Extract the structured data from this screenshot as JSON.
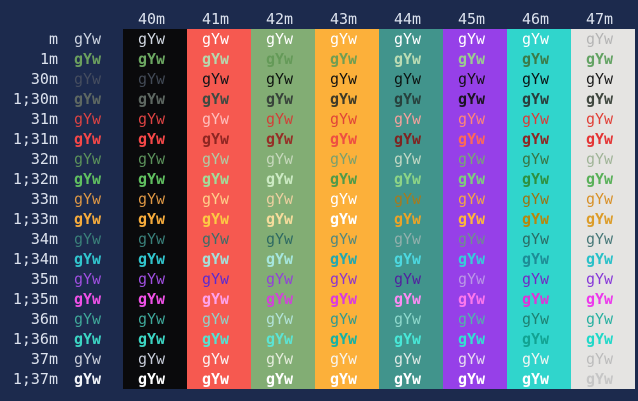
{
  "terminal": {
    "cell_text": "gYw",
    "background": "#1c2a4d",
    "header_color": "#dce2ee",
    "label_color": "#dce2ee",
    "columns": [
      {
        "id": "default",
        "header": "",
        "bg": null
      },
      {
        "id": "40m",
        "header": "40m",
        "bg": "#0a0a0c"
      },
      {
        "id": "41m",
        "header": "41m",
        "bg": "#f65950"
      },
      {
        "id": "42m",
        "header": "42m",
        "bg": "#82ad74"
      },
      {
        "id": "43m",
        "header": "43m",
        "bg": "#fcb03a"
      },
      {
        "id": "44m",
        "header": "44m",
        "bg": "#41948c"
      },
      {
        "id": "45m",
        "header": "45m",
        "bg": "#9640e8"
      },
      {
        "id": "46m",
        "header": "46m",
        "bg": "#30d5cc"
      },
      {
        "id": "47m",
        "header": "47m",
        "bg": "#e5e4e2"
      }
    ],
    "rows": [
      {
        "label": "m",
        "bold": false,
        "cells": [
          "#ccd3e0",
          "#d2d8e2",
          "#ffffff",
          "#ffffff",
          "#ffffff",
          "#ffffff",
          "#ffffff",
          "#ffffff",
          "#b4b4b4"
        ]
      },
      {
        "label": "1m",
        "bold": true,
        "cells": [
          "#6ca05e",
          "#6ca862",
          "#b6d8ae",
          "#649a58",
          "#6f9e53",
          "#bcdcb4",
          "#9ccc90",
          "#3c7a48",
          "#62a262"
        ]
      },
      {
        "label": "30m",
        "bold": false,
        "cells": [
          "#454d5f",
          "#424a56",
          "#101418",
          "#0e1410",
          "#131310",
          "#0c1412",
          "#141014",
          "#0c1414",
          "#1c1c1c"
        ]
      },
      {
        "label": "1;30m",
        "bold": true,
        "cells": [
          "#5e6862",
          "#5e6862",
          "#3e4a42",
          "#37423a",
          "#3c3a28",
          "#27403c",
          "#1c1420",
          "#2c3c3a",
          "#3e463e"
        ]
      },
      {
        "label": "31m",
        "bold": false,
        "cells": [
          "#dc4343",
          "#dc4343",
          "#fcc0bc",
          "#d04038",
          "#e04438",
          "#f4a29c",
          "#fc8878",
          "#d83c38",
          "#e04038"
        ]
      },
      {
        "label": "1;31m",
        "bold": true,
        "cells": [
          "#f64848",
          "#f64848",
          "#8e2622",
          "#962e26",
          "#ee4e42",
          "#7e2420",
          "#fc6a58",
          "#8e2622",
          "#e43434"
        ]
      },
      {
        "label": "32m",
        "bold": false,
        "cells": [
          "#5b915b",
          "#5b915b",
          "#b0cca4",
          "#c6d8bc",
          "#7aa06c",
          "#c2d8c4",
          "#7aa674",
          "#3a7444",
          "#a0b498"
        ]
      },
      {
        "label": "1;32m",
        "bold": true,
        "cells": [
          "#60c060",
          "#60c060",
          "#a2dc9a",
          "#cceac4",
          "#4e9a4a",
          "#8ed486",
          "#80cc7c",
          "#2f8f3f",
          "#58b058"
        ]
      },
      {
        "label": "33m",
        "bold": false,
        "cells": [
          "#dd9745",
          "#dd9745",
          "#fcd08c",
          "#ecd0a0",
          "#ffffff",
          "#a87a1c",
          "#f0a848",
          "#9a7414",
          "#d89028"
        ]
      },
      {
        "label": "1;33m",
        "bold": true,
        "cells": [
          "#f7ac3c",
          "#f7ac3c",
          "#fcca44",
          "#f6dc9c",
          "#ffffff",
          "#eca428",
          "#fcb83c",
          "#b8860c",
          "#dc9c28"
        ]
      },
      {
        "label": "34m",
        "bold": false,
        "cells": [
          "#3a807a",
          "#3a807a",
          "#3e6c68",
          "#2e6a62",
          "#50887e",
          "#92b0ac",
          "#6e908c",
          "#2c6b64",
          "#487878"
        ]
      },
      {
        "label": "1;34m",
        "bold": true,
        "cells": [
          "#31c6ce",
          "#31c6ce",
          "#a4e0da",
          "#a6e6de",
          "#21a8b0",
          "#4cd8e0",
          "#38ccd8",
          "#1e8c96",
          "#28c0c8"
        ]
      },
      {
        "label": "35m",
        "bold": false,
        "cells": [
          "#a04fe0",
          "#a04fe0",
          "#5b2bd0",
          "#9340d8",
          "#8c34cc",
          "#52229e",
          "#b89ae4",
          "#7428c0",
          "#8838d8"
        ]
      },
      {
        "label": "1;35m",
        "bold": true,
        "cells": [
          "#f051e8",
          "#f051e8",
          "#fca4ec",
          "#d044d8",
          "#d83ae0",
          "#fc8cf4",
          "#fc78ec",
          "#e032d8",
          "#ec38ec"
        ]
      },
      {
        "label": "36m",
        "bold": false,
        "cells": [
          "#3fa89a",
          "#3fa89a",
          "#90d2c8",
          "#b2e2d8",
          "#2f9a8e",
          "#8ed8cc",
          "#52b4ac",
          "#1f7f72",
          "#28b0a0"
        ]
      },
      {
        "label": "1;36m",
        "bold": true,
        "cells": [
          "#3cd6c4",
          "#3cd6c4",
          "#54e2d2",
          "#5ce4d4",
          "#16b2a4",
          "#48e8d8",
          "#34e0d0",
          "#12a392",
          "#20d8c8"
        ]
      },
      {
        "label": "37m",
        "bold": false,
        "cells": [
          "#c7ccd8",
          "#c7ccd8",
          "#f8f4f4",
          "#e4ecdc",
          "#f8f4ec",
          "#dce8e4",
          "#e4dcf0",
          "#f0f4f4",
          "#bcbcbc"
        ]
      },
      {
        "label": "1;37m",
        "bold": true,
        "cells": [
          "#f4f6fa",
          "#ffffff",
          "#ffffff",
          "#ffffff",
          "#ffffff",
          "#ffffff",
          "#ffffff",
          "#ffffff",
          "#c6c6c6"
        ]
      }
    ]
  }
}
